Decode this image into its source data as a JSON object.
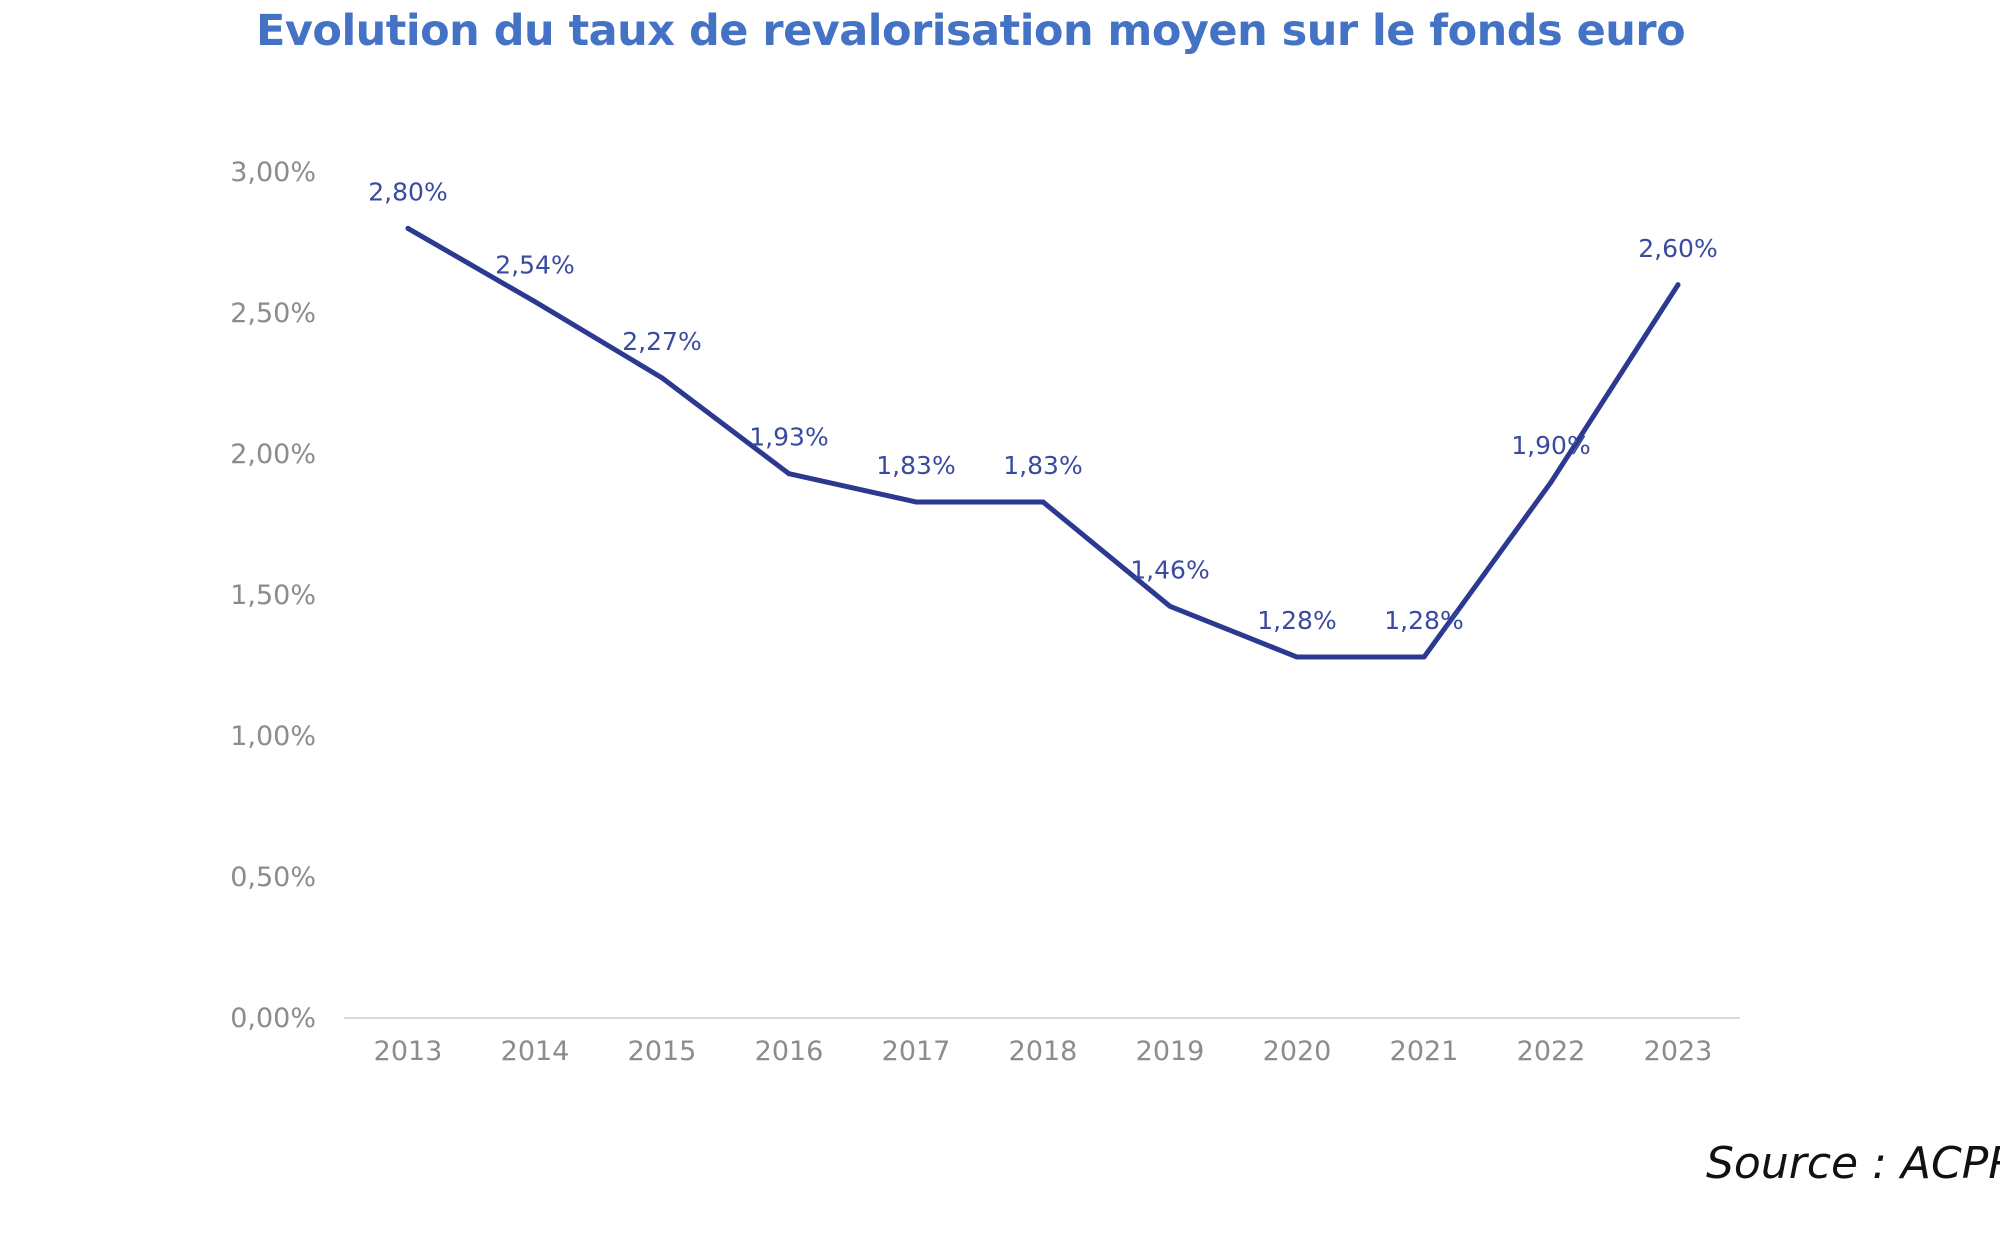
{
  "chart_data": {
    "type": "line",
    "title": "Evolution du taux de revalorisation moyen sur le fonds euro",
    "xlabel": "",
    "ylabel": "",
    "categories": [
      "2013",
      "2014",
      "2015",
      "2016",
      "2017",
      "2018",
      "2019",
      "2020",
      "2021",
      "2022",
      "2023"
    ],
    "series": [
      {
        "values": [
          2.8,
          2.54,
          2.27,
          1.93,
          1.83,
          1.83,
          1.46,
          1.28,
          1.28,
          1.9,
          2.6
        ],
        "data_labels": [
          "2,80%",
          "2,54%",
          "2,27%",
          "1,93%",
          "1,83%",
          "1,83%",
          "1,46%",
          "1,28%",
          "1,28%",
          "1,90%",
          "2,60%"
        ],
        "color": "#2B3990"
      }
    ],
    "ylim": [
      0,
      3
    ],
    "yticks": [
      0,
      0.5,
      1,
      1.5,
      2,
      2.5,
      3
    ],
    "ytick_labels": [
      "0,00%",
      "0,50%",
      "1,00%",
      "1,50%",
      "2,00%",
      "2,50%",
      "3,00%"
    ],
    "grid": false,
    "legend": "none"
  },
  "source_note": "Source : ACPR",
  "colors": {
    "title": "#4472C4",
    "line": "#2B3990",
    "axis_text": "#8c8c8c",
    "data_label": "#3a4aa0"
  }
}
